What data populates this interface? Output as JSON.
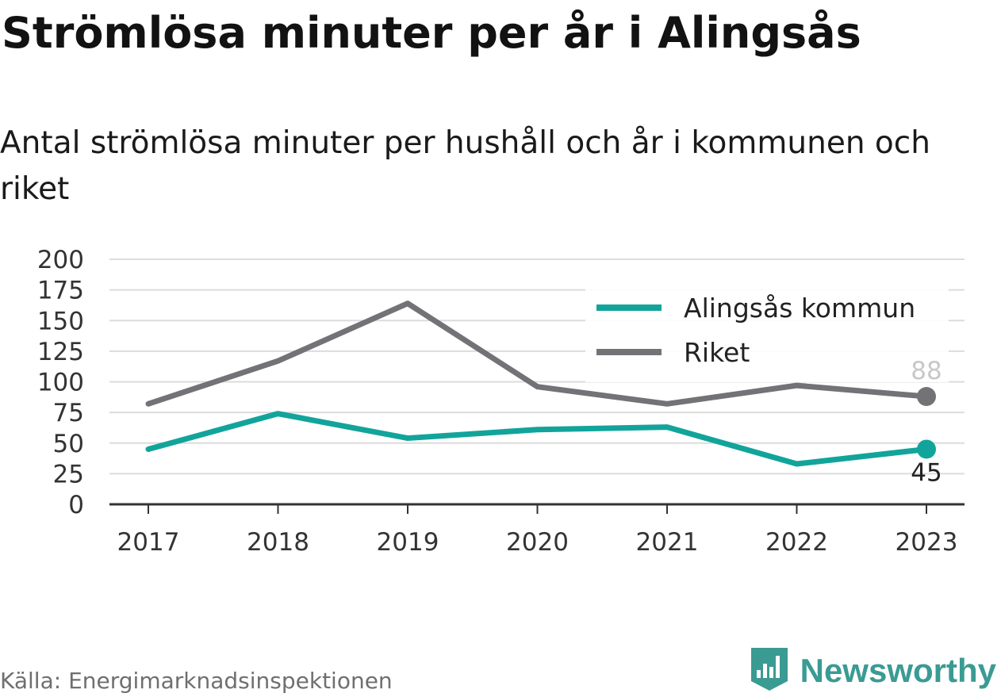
{
  "title": "Strömlösa minuter per år i Alingsås",
  "subtitle": "Antal strömlösa minuter per hushåll och år i kommunen och riket",
  "source": "Källa: Energimarknadsinspektionen",
  "brand": {
    "name": "Newsworthy",
    "icon": "newsworthy-logo-icon"
  },
  "colors": {
    "alingsas": "#12a49b",
    "riket": "#737276",
    "grid": "#dcdcdc",
    "axis": "#333333",
    "end_label_riket": "#c8c8c8",
    "end_label_alingsas": "#222222"
  },
  "chart_data": {
    "type": "line",
    "x": [
      "2017",
      "2018",
      "2019",
      "2020",
      "2021",
      "2022",
      "2023"
    ],
    "ylim": [
      0,
      200
    ],
    "yticks": [
      "0",
      "25",
      "50",
      "75",
      "100",
      "125",
      "150",
      "175",
      "200"
    ],
    "grid": true,
    "legend_position": "top-right",
    "series": [
      {
        "name": "Alingsås kommun",
        "values": [
          45,
          74,
          54,
          61,
          63,
          33,
          45
        ],
        "end_label": "45"
      },
      {
        "name": "Riket",
        "values": [
          82,
          117,
          164,
          96,
          82,
          97,
          88
        ],
        "end_label": "88"
      }
    ]
  }
}
